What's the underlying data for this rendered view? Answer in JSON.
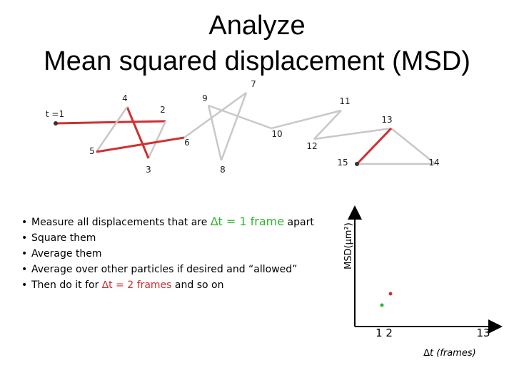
{
  "title": {
    "line1": "Analyze",
    "line2": "Mean squared displacement (MSD)"
  },
  "trajectory": {
    "labels": [
      "t =1",
      "2",
      "3",
      "4",
      "5",
      "6",
      "7",
      "8",
      "9",
      "10",
      "11",
      "12",
      "13",
      "14",
      "15"
    ]
  },
  "bullets": [
    {
      "parts": [
        "Measure all displacements that are ",
        "∆t = 1 frame",
        " apart"
      ]
    },
    {
      "parts": [
        "Square them"
      ]
    },
    {
      "parts": [
        "Average them"
      ]
    },
    {
      "parts": [
        "Average over other particles if desired and “allowed”"
      ]
    },
    {
      "parts": [
        "Then do it for ",
        "∆t = 2 frames",
        " and so on"
      ]
    }
  ],
  "plot": {
    "y_label": "MSD(μm²)",
    "x_label": "∆t (frames)",
    "x_tick_left": "1 2",
    "x_tick_right": "13"
  }
}
